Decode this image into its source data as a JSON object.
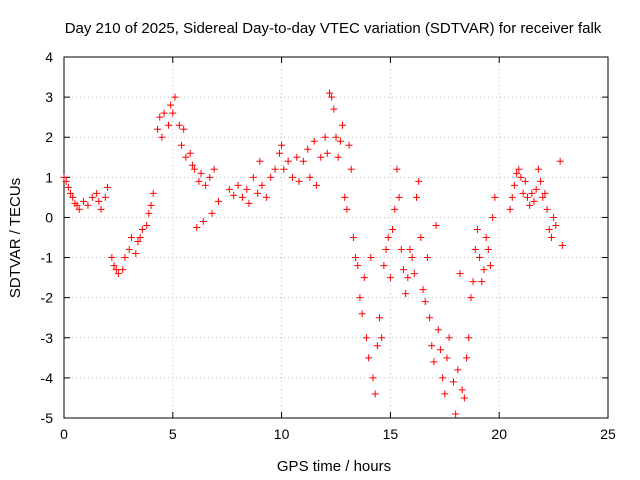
{
  "chart_data": {
    "type": "scatter",
    "title": "Day 210 of 2025, Sidereal Day-to-day VTEC variation (SDTVAR) for receiver falk",
    "xlabel": "GPS time / hours",
    "ylabel": "SDTVAR / TECUs",
    "xlim": [
      0,
      25
    ],
    "ylim": [
      -5,
      4
    ],
    "xticks": [
      0,
      5,
      10,
      15,
      20,
      25
    ],
    "yticks": [
      -5,
      -4,
      -3,
      -2,
      -1,
      0,
      1,
      2,
      3,
      4
    ],
    "xtick_labels": [
      "0",
      "5",
      "10",
      "15",
      "20",
      "25"
    ],
    "ytick_labels": [
      "-5",
      "-4",
      "-3",
      "-2",
      "-1",
      "0",
      "1",
      "2",
      "3",
      "4"
    ],
    "grid": true,
    "marker": "plus",
    "series": [
      {
        "name": "SDTVAR",
        "color": "#ff0000",
        "points": [
          [
            0.0,
            1.0
          ],
          [
            0.1,
            0.9
          ],
          [
            0.2,
            0.75
          ],
          [
            0.3,
            0.6
          ],
          [
            0.4,
            0.5
          ],
          [
            0.5,
            0.35
          ],
          [
            0.6,
            0.3
          ],
          [
            0.7,
            0.2
          ],
          [
            0.9,
            0.4
          ],
          [
            1.1,
            0.3
          ],
          [
            1.3,
            0.5
          ],
          [
            1.5,
            0.6
          ],
          [
            1.6,
            0.4
          ],
          [
            1.7,
            0.2
          ],
          [
            1.9,
            0.5
          ],
          [
            2.0,
            0.75
          ],
          [
            2.2,
            -1.0
          ],
          [
            2.3,
            -1.2
          ],
          [
            2.4,
            -1.3
          ],
          [
            2.5,
            -1.4
          ],
          [
            2.7,
            -1.3
          ],
          [
            2.8,
            -1.0
          ],
          [
            3.0,
            -0.8
          ],
          [
            3.1,
            -0.5
          ],
          [
            3.3,
            -0.9
          ],
          [
            3.4,
            -0.6
          ],
          [
            3.5,
            -0.5
          ],
          [
            3.6,
            -0.3
          ],
          [
            3.8,
            -0.2
          ],
          [
            3.9,
            0.1
          ],
          [
            4.0,
            0.3
          ],
          [
            4.1,
            0.6
          ],
          [
            4.3,
            2.2
          ],
          [
            4.4,
            2.5
          ],
          [
            4.5,
            2.0
          ],
          [
            4.6,
            2.6
          ],
          [
            4.8,
            2.3
          ],
          [
            4.9,
            2.8
          ],
          [
            5.0,
            2.6
          ],
          [
            5.1,
            3.0
          ],
          [
            5.3,
            2.3
          ],
          [
            5.4,
            1.8
          ],
          [
            5.5,
            2.2
          ],
          [
            5.6,
            1.5
          ],
          [
            5.8,
            1.6
          ],
          [
            5.9,
            1.3
          ],
          [
            6.0,
            1.2
          ],
          [
            6.2,
            0.9
          ],
          [
            6.3,
            1.1
          ],
          [
            6.5,
            0.8
          ],
          [
            6.7,
            1.0
          ],
          [
            6.9,
            1.2
          ],
          [
            6.1,
            -0.25
          ],
          [
            6.4,
            -0.1
          ],
          [
            6.8,
            0.1
          ],
          [
            7.1,
            0.4
          ],
          [
            7.6,
            0.7
          ],
          [
            7.8,
            0.55
          ],
          [
            8.0,
            0.8
          ],
          [
            8.2,
            0.5
          ],
          [
            8.4,
            0.7
          ],
          [
            8.5,
            0.35
          ],
          [
            8.7,
            1.0
          ],
          [
            8.9,
            0.6
          ],
          [
            9.0,
            1.4
          ],
          [
            9.1,
            0.8
          ],
          [
            9.3,
            0.5
          ],
          [
            9.5,
            1.0
          ],
          [
            9.7,
            1.2
          ],
          [
            9.9,
            1.6
          ],
          [
            10.0,
            1.8
          ],
          [
            10.1,
            1.2
          ],
          [
            10.3,
            1.4
          ],
          [
            10.5,
            1.0
          ],
          [
            10.7,
            1.5
          ],
          [
            10.8,
            0.9
          ],
          [
            11.0,
            1.4
          ],
          [
            11.2,
            1.7
          ],
          [
            11.3,
            1.0
          ],
          [
            11.5,
            1.9
          ],
          [
            11.6,
            0.8
          ],
          [
            11.8,
            1.5
          ],
          [
            12.0,
            2.0
          ],
          [
            12.1,
            1.6
          ],
          [
            12.2,
            3.1
          ],
          [
            12.3,
            3.0
          ],
          [
            12.4,
            2.7
          ],
          [
            12.5,
            2.0
          ],
          [
            12.6,
            1.5
          ],
          [
            12.7,
            1.9
          ],
          [
            12.8,
            2.3
          ],
          [
            12.9,
            0.5
          ],
          [
            13.0,
            0.2
          ],
          [
            13.1,
            1.8
          ],
          [
            13.2,
            1.2
          ],
          [
            13.3,
            -0.5
          ],
          [
            13.4,
            -1.0
          ],
          [
            13.5,
            -1.2
          ],
          [
            13.6,
            -2.0
          ],
          [
            13.7,
            -2.4
          ],
          [
            13.8,
            -1.5
          ],
          [
            13.9,
            -3.0
          ],
          [
            14.0,
            -3.5
          ],
          [
            14.1,
            -1.0
          ],
          [
            14.2,
            -4.0
          ],
          [
            14.3,
            -4.4
          ],
          [
            14.4,
            -3.2
          ],
          [
            14.5,
            -2.5
          ],
          [
            14.6,
            -3.0
          ],
          [
            14.7,
            -1.2
          ],
          [
            14.8,
            -0.8
          ],
          [
            14.9,
            -0.5
          ],
          [
            15.0,
            -1.5
          ],
          [
            15.1,
            -0.3
          ],
          [
            15.2,
            0.2
          ],
          [
            15.3,
            1.2
          ],
          [
            15.4,
            0.5
          ],
          [
            15.5,
            -0.8
          ],
          [
            15.6,
            -1.3
          ],
          [
            15.7,
            -1.9
          ],
          [
            15.8,
            -1.5
          ],
          [
            15.9,
            -0.8
          ],
          [
            16.0,
            -1.0
          ],
          [
            16.1,
            -1.4
          ],
          [
            16.2,
            0.5
          ],
          [
            16.3,
            0.9
          ],
          [
            16.4,
            -0.5
          ],
          [
            16.5,
            -1.8
          ],
          [
            16.6,
            -2.1
          ],
          [
            16.7,
            -1.0
          ],
          [
            16.8,
            -2.5
          ],
          [
            16.9,
            -3.2
          ],
          [
            17.0,
            -3.6
          ],
          [
            17.1,
            -0.2
          ],
          [
            17.2,
            -2.8
          ],
          [
            17.3,
            -3.3
          ],
          [
            17.4,
            -4.0
          ],
          [
            17.5,
            -4.4
          ],
          [
            17.6,
            -3.5
          ],
          [
            17.7,
            -3.0
          ],
          [
            17.9,
            -4.1
          ],
          [
            18.0,
            -4.9
          ],
          [
            18.1,
            -3.8
          ],
          [
            18.2,
            -1.4
          ],
          [
            18.3,
            -4.3
          ],
          [
            18.4,
            -4.5
          ],
          [
            18.5,
            -3.5
          ],
          [
            18.6,
            -3.0
          ],
          [
            18.7,
            -2.0
          ],
          [
            18.8,
            -1.6
          ],
          [
            18.9,
            -0.8
          ],
          [
            19.0,
            -0.3
          ],
          [
            19.1,
            -1.0
          ],
          [
            19.2,
            -1.6
          ],
          [
            19.3,
            -1.3
          ],
          [
            19.4,
            -0.5
          ],
          [
            19.5,
            -0.8
          ],
          [
            19.6,
            -1.2
          ],
          [
            19.7,
            0.0
          ],
          [
            19.8,
            0.5
          ],
          [
            20.5,
            0.2
          ],
          [
            20.6,
            0.5
          ],
          [
            20.7,
            0.8
          ],
          [
            20.8,
            1.1
          ],
          [
            20.9,
            1.2
          ],
          [
            21.0,
            1.0
          ],
          [
            21.1,
            0.6
          ],
          [
            21.2,
            0.9
          ],
          [
            21.3,
            0.5
          ],
          [
            21.4,
            0.3
          ],
          [
            21.5,
            0.6
          ],
          [
            21.6,
            0.4
          ],
          [
            21.7,
            0.7
          ],
          [
            21.8,
            1.2
          ],
          [
            21.9,
            0.9
          ],
          [
            22.0,
            0.5
          ],
          [
            22.1,
            0.6
          ],
          [
            22.2,
            0.2
          ],
          [
            22.3,
            -0.3
          ],
          [
            22.4,
            -0.5
          ],
          [
            22.5,
            0.0
          ],
          [
            22.6,
            -0.2
          ],
          [
            22.8,
            1.4
          ],
          [
            22.9,
            -0.7
          ]
        ]
      }
    ]
  }
}
